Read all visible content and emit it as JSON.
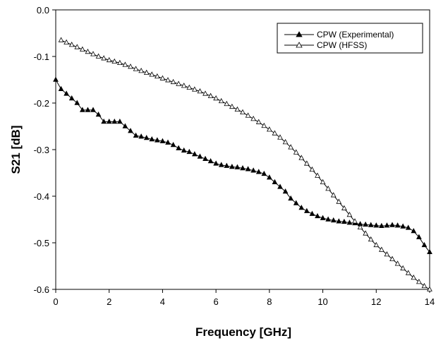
{
  "chart_data": {
    "type": "line",
    "title": "",
    "xlabel": "Frequency [GHz]",
    "ylabel": "S21 [dB]",
    "xlim": [
      0,
      14
    ],
    "ylim": [
      -0.6,
      0.0
    ],
    "x_ticks": [
      0,
      2,
      4,
      6,
      8,
      10,
      12,
      14
    ],
    "x_tick_labels": [
      "0",
      "2",
      "4",
      "6",
      "8",
      "10",
      "12",
      "14"
    ],
    "y_ticks": [
      0.0,
      -0.1,
      -0.2,
      -0.3,
      -0.4,
      -0.5,
      -0.6
    ],
    "y_tick_labels": [
      "0.0",
      "-0.1",
      "-0.2",
      "-0.3",
      "-0.4",
      "-0.5",
      "-0.6"
    ],
    "grid": false,
    "legend_position": "top-right",
    "series": [
      {
        "name": "CPW (Experimental)",
        "marker": "filled-triangle",
        "color": "#000000",
        "points": [
          [
            0.0,
            -0.15
          ],
          [
            0.2,
            -0.17
          ],
          [
            0.4,
            -0.18
          ],
          [
            0.6,
            -0.19
          ],
          [
            0.8,
            -0.2
          ],
          [
            1.0,
            -0.215
          ],
          [
            1.2,
            -0.215
          ],
          [
            1.4,
            -0.215
          ],
          [
            1.6,
            -0.225
          ],
          [
            1.8,
            -0.24
          ],
          [
            2.0,
            -0.24
          ],
          [
            2.2,
            -0.24
          ],
          [
            2.4,
            -0.24
          ],
          [
            2.6,
            -0.25
          ],
          [
            2.8,
            -0.26
          ],
          [
            3.0,
            -0.27
          ],
          [
            3.2,
            -0.272
          ],
          [
            3.4,
            -0.275
          ],
          [
            3.6,
            -0.278
          ],
          [
            3.8,
            -0.28
          ],
          [
            4.0,
            -0.282
          ],
          [
            4.2,
            -0.285
          ],
          [
            4.4,
            -0.29
          ],
          [
            4.6,
            -0.297
          ],
          [
            4.8,
            -0.302
          ],
          [
            5.0,
            -0.305
          ],
          [
            5.2,
            -0.31
          ],
          [
            5.4,
            -0.315
          ],
          [
            5.6,
            -0.32
          ],
          [
            5.8,
            -0.325
          ],
          [
            6.0,
            -0.33
          ],
          [
            6.2,
            -0.333
          ],
          [
            6.4,
            -0.335
          ],
          [
            6.6,
            -0.337
          ],
          [
            6.8,
            -0.338
          ],
          [
            7.0,
            -0.34
          ],
          [
            7.2,
            -0.342
          ],
          [
            7.4,
            -0.345
          ],
          [
            7.6,
            -0.348
          ],
          [
            7.8,
            -0.352
          ],
          [
            8.0,
            -0.36
          ],
          [
            8.2,
            -0.37
          ],
          [
            8.4,
            -0.38
          ],
          [
            8.6,
            -0.39
          ],
          [
            8.8,
            -0.405
          ],
          [
            9.0,
            -0.415
          ],
          [
            9.2,
            -0.425
          ],
          [
            9.4,
            -0.432
          ],
          [
            9.6,
            -0.438
          ],
          [
            9.8,
            -0.443
          ],
          [
            10.0,
            -0.447
          ],
          [
            10.2,
            -0.45
          ],
          [
            10.4,
            -0.452
          ],
          [
            10.6,
            -0.454
          ],
          [
            10.8,
            -0.455
          ],
          [
            11.0,
            -0.457
          ],
          [
            11.2,
            -0.458
          ],
          [
            11.4,
            -0.46
          ],
          [
            11.6,
            -0.461
          ],
          [
            11.8,
            -0.462
          ],
          [
            12.0,
            -0.463
          ],
          [
            12.2,
            -0.464
          ],
          [
            12.4,
            -0.463
          ],
          [
            12.6,
            -0.462
          ],
          [
            12.8,
            -0.463
          ],
          [
            13.0,
            -0.465
          ],
          [
            13.2,
            -0.468
          ],
          [
            13.4,
            -0.475
          ],
          [
            13.6,
            -0.488
          ],
          [
            13.8,
            -0.505
          ],
          [
            14.0,
            -0.52
          ]
        ]
      },
      {
        "name": "CPW (HFSS)",
        "marker": "open-triangle",
        "color": "#000000",
        "points": [
          [
            0.2,
            -0.065
          ],
          [
            0.4,
            -0.07
          ],
          [
            0.6,
            -0.075
          ],
          [
            0.8,
            -0.08
          ],
          [
            1.0,
            -0.085
          ],
          [
            1.2,
            -0.09
          ],
          [
            1.4,
            -0.095
          ],
          [
            1.6,
            -0.1
          ],
          [
            1.8,
            -0.104
          ],
          [
            2.0,
            -0.108
          ],
          [
            2.2,
            -0.111
          ],
          [
            2.4,
            -0.114
          ],
          [
            2.6,
            -0.118
          ],
          [
            2.8,
            -0.122
          ],
          [
            3.0,
            -0.127
          ],
          [
            3.2,
            -0.131
          ],
          [
            3.4,
            -0.135
          ],
          [
            3.6,
            -0.139
          ],
          [
            3.8,
            -0.143
          ],
          [
            4.0,
            -0.147
          ],
          [
            4.2,
            -0.151
          ],
          [
            4.4,
            -0.155
          ],
          [
            4.6,
            -0.159
          ],
          [
            4.8,
            -0.163
          ],
          [
            5.0,
            -0.167
          ],
          [
            5.2,
            -0.171
          ],
          [
            5.4,
            -0.175
          ],
          [
            5.6,
            -0.18
          ],
          [
            5.8,
            -0.185
          ],
          [
            6.0,
            -0.19
          ],
          [
            6.2,
            -0.196
          ],
          [
            6.4,
            -0.202
          ],
          [
            6.6,
            -0.208
          ],
          [
            6.8,
            -0.214
          ],
          [
            7.0,
            -0.22
          ],
          [
            7.2,
            -0.227
          ],
          [
            7.4,
            -0.234
          ],
          [
            7.6,
            -0.241
          ],
          [
            7.8,
            -0.249
          ],
          [
            8.0,
            -0.257
          ],
          [
            8.2,
            -0.265
          ],
          [
            8.4,
            -0.274
          ],
          [
            8.6,
            -0.284
          ],
          [
            8.8,
            -0.295
          ],
          [
            9.0,
            -0.306
          ],
          [
            9.2,
            -0.318
          ],
          [
            9.4,
            -0.33
          ],
          [
            9.6,
            -0.343
          ],
          [
            9.8,
            -0.356
          ],
          [
            10.0,
            -0.37
          ],
          [
            10.2,
            -0.384
          ],
          [
            10.4,
            -0.398
          ],
          [
            10.6,
            -0.412
          ],
          [
            10.8,
            -0.426
          ],
          [
            11.0,
            -0.44
          ],
          [
            11.2,
            -0.454
          ],
          [
            11.4,
            -0.467
          ],
          [
            11.6,
            -0.48
          ],
          [
            11.8,
            -0.493
          ],
          [
            12.0,
            -0.505
          ],
          [
            12.2,
            -0.515
          ],
          [
            12.4,
            -0.525
          ],
          [
            12.6,
            -0.535
          ],
          [
            12.8,
            -0.545
          ],
          [
            13.0,
            -0.555
          ],
          [
            13.2,
            -0.565
          ],
          [
            13.4,
            -0.575
          ],
          [
            13.6,
            -0.584
          ],
          [
            13.8,
            -0.593
          ],
          [
            14.0,
            -0.6
          ]
        ]
      }
    ]
  }
}
